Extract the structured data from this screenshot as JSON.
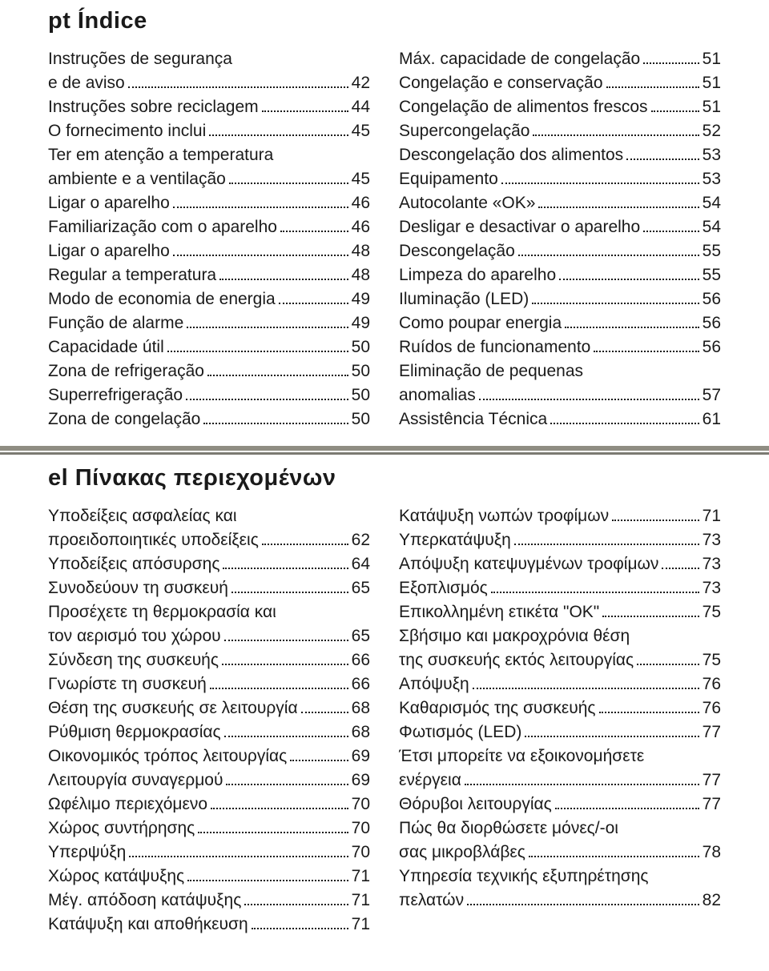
{
  "pt": {
    "lang_code": "pt",
    "title": "Índice",
    "full_title": "pt   Índice",
    "left": [
      {
        "label": "Instruções de segurança"
      },
      {
        "label": "e de aviso",
        "page": "42"
      },
      {
        "label": "Instruções sobre reciclagem",
        "page": "44"
      },
      {
        "label": "O fornecimento inclui",
        "page": "45"
      },
      {
        "label": "Ter em atenção a temperatura"
      },
      {
        "label": "ambiente e a ventilação",
        "page": "45"
      },
      {
        "label": "Ligar o aparelho",
        "page": "46"
      },
      {
        "label": "Familiarização com o aparelho",
        "page": "46"
      },
      {
        "label": "Ligar o aparelho",
        "page": "48"
      },
      {
        "label": "Regular a temperatura",
        "page": "48"
      },
      {
        "label": "Modo de economia de energia",
        "page": "49"
      },
      {
        "label": "Função de alarme",
        "page": "49"
      },
      {
        "label": "Capacidade útil",
        "page": "50"
      },
      {
        "label": "Zona de refrigeração",
        "page": "50"
      },
      {
        "label": "Superrefrigeração",
        "page": "50"
      },
      {
        "label": "Zona de congelação",
        "page": "50"
      }
    ],
    "right": [
      {
        "label": "Máx. capacidade de congelação",
        "page": "51"
      },
      {
        "label": "Congelação e conservação",
        "page": "51"
      },
      {
        "label": "Congelação de alimentos frescos",
        "page": "51"
      },
      {
        "label": "Supercongelação",
        "page": "52"
      },
      {
        "label": "Descongelação dos alimentos",
        "page": "53"
      },
      {
        "label": "Equipamento",
        "page": "53"
      },
      {
        "label": "Autocolante «OK»",
        "page": "54"
      },
      {
        "label": "Desligar e desactivar o aparelho",
        "page": "54"
      },
      {
        "label": "Descongelação",
        "page": "55"
      },
      {
        "label": "Limpeza do aparelho",
        "page": "55"
      },
      {
        "label": "Iluminação (LED)",
        "page": "56"
      },
      {
        "label": "Como poupar energia",
        "page": "56"
      },
      {
        "label": "Ruídos de funcionamento",
        "page": "56"
      },
      {
        "label": "Eliminação de pequenas"
      },
      {
        "label": "anomalias",
        "page": "57"
      },
      {
        "label": "Assistência Técnica",
        "page": "61"
      }
    ]
  },
  "el": {
    "lang_code": "el",
    "title": "Πίνακας περιεχομένων",
    "full_title": "el   Πίνακας περιεχομένων",
    "left": [
      {
        "label": "Υποδείξεις ασφαλείας και"
      },
      {
        "label": "προειδοποιητικές υποδείξεις",
        "page": "62"
      },
      {
        "label": "Υποδείξεις απόσυρσης",
        "page": "64"
      },
      {
        "label": "Συνοδεύουν τη συσκευή",
        "page": "65"
      },
      {
        "label": "Προσέχετε τη θερμοκρασία και"
      },
      {
        "label": "τον αερισμό του χώρου",
        "page": "65"
      },
      {
        "label": "Σύνδεση της συσκευής",
        "page": "66"
      },
      {
        "label": "Γνωρίστε τη συσκευή",
        "page": "66"
      },
      {
        "label": "Θέση της συσκευής σε λειτουργία",
        "page": "68"
      },
      {
        "label": "Ρύθμιση θερμοκρασίας",
        "page": "68"
      },
      {
        "label": "Οικονομικός τρόπος λειτουργίας",
        "page": "69"
      },
      {
        "label": "Λειτουργία συναγερμού",
        "page": "69"
      },
      {
        "label": "Ωφέλιμο περιεχόμενο",
        "page": "70"
      },
      {
        "label": "Χώρος συντήρησης",
        "page": "70"
      },
      {
        "label": "Υπερψύξη",
        "page": "70"
      },
      {
        "label": "Χώρος κατάψυξης",
        "page": "71"
      },
      {
        "label": "Μέγ. απόδοση κατάψυξης",
        "page": "71"
      },
      {
        "label": "Κατάψυξη και αποθήκευση",
        "page": "71"
      }
    ],
    "right": [
      {
        "label": "Κατάψυξη νωπών τροφίμων",
        "page": "71"
      },
      {
        "label": "Υπερκατάψυξη",
        "page": "73"
      },
      {
        "label": "Απόψυξη κατεψυγμένων τροφίμων",
        "page": "73"
      },
      {
        "label": "Εξοπλισμός",
        "page": "73"
      },
      {
        "label": "Επικολλημένη ετικέτα \"OK\"",
        "page": "75"
      },
      {
        "label": "Σβήσιμο και μακροχρόνια θέση"
      },
      {
        "label": "της συσκευής εκτός λειτουργίας",
        "page": "75"
      },
      {
        "label": "Απόψυξη",
        "page": "76"
      },
      {
        "label": "Καθαρισμός της συσκευής",
        "page": "76"
      },
      {
        "label": "Φωτισμός (LED)",
        "page": "77"
      },
      {
        "label": "Έτσι μπορείτε να εξοικονομήσετε"
      },
      {
        "label": "ενέργεια",
        "page": "77"
      },
      {
        "label": "Θόρυβοι λειτουργίας",
        "page": "77"
      },
      {
        "label": "Πώς θα διορθώσετε μόνες/-οι"
      },
      {
        "label": "σας μικροβλάβες",
        "page": "78"
      },
      {
        "label": "Υπηρεσία τεχνικής εξυπηρέτησης"
      },
      {
        "label": "πελατών",
        "page": "82"
      }
    ]
  }
}
